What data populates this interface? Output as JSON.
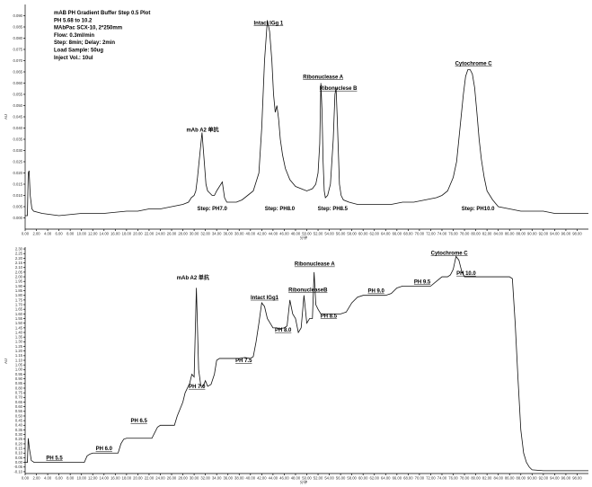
{
  "chart_data": [
    {
      "type": "line",
      "title": "mAB PH Gradient Buffer Step 0.5 Plot",
      "info_lines": [
        "mAB PH Gradient Buffer Step 0.5 Plot",
        "PH 5.68 to 10.2",
        "MAbPac SCX-10, 2*250mm",
        "Flow: 0.3ml/min",
        "Step: 8min; Delay: 2min",
        "Load Sample: 50ug",
        "Inject Vol.: 10ul"
      ],
      "xlabel": "分钟",
      "ylabel": "AU",
      "xlim": [
        0,
        100
      ],
      "ylim": [
        -0.005,
        0.095
      ],
      "yticks": [
        "0.000",
        "0.005",
        "0.010",
        "0.015",
        "0.020",
        "0.025",
        "0.030",
        "0.035",
        "0.040",
        "0.045",
        "0.050",
        "0.055",
        "0.060",
        "0.065",
        "0.070",
        "0.075",
        "0.080",
        "0.085",
        "0.090"
      ],
      "yticks_values": [
        0,
        0.005,
        0.01,
        0.015,
        0.02,
        0.025,
        0.03,
        0.035,
        0.04,
        0.045,
        0.05,
        0.055,
        0.06,
        0.065,
        0.07,
        0.075,
        0.08,
        0.085,
        0.09
      ],
      "xticks": [
        "0.00",
        "2.00",
        "4.00",
        "6.00",
        "8.00",
        "10.00",
        "12.00",
        "14.00",
        "16.00",
        "18.00",
        "20.00",
        "22.00",
        "24.00",
        "26.00",
        "28.00",
        "30.00",
        "32.00",
        "34.00",
        "36.00",
        "38.00",
        "40.00",
        "42.00",
        "44.00",
        "46.00",
        "48.00",
        "50.00",
        "52.00",
        "54.00",
        "56.00",
        "58.00",
        "60.00",
        "62.00",
        "64.00",
        "66.00",
        "68.00",
        "70.00",
        "72.00",
        "74.00",
        "76.00",
        "78.00",
        "80.00",
        "82.00",
        "84.00",
        "86.00",
        "88.00",
        "90.00",
        "92.00",
        "94.00",
        "96.00",
        "98.00"
      ],
      "series": [
        {
          "x": [
            0,
            0.4,
            0.55,
            0.7,
            0.9,
            1.2,
            1.5,
            3,
            6,
            10,
            14,
            18,
            20,
            22,
            24,
            26,
            28,
            29,
            29.5,
            30,
            30.3,
            30.6,
            31,
            31.4,
            31.8,
            32.1,
            32.4,
            32.8,
            33.2,
            33.6,
            34,
            35,
            35.4,
            35.8,
            36.2,
            36.8,
            37.5,
            38.5,
            39.5,
            40.5,
            41.5,
            42,
            42.5,
            43,
            43.4,
            43.8,
            44.1,
            44.4,
            44.7,
            45,
            45.3,
            45.7,
            46.2,
            47,
            48,
            49,
            50,
            51,
            51.6,
            52,
            52.3,
            52.5,
            52.7,
            52.9,
            53.1,
            53.3,
            53.7,
            54.2,
            54.7,
            55,
            55.2,
            55.4,
            55.6,
            55.8,
            56.1,
            56.5,
            57.5,
            59,
            61,
            63,
            65,
            67,
            69,
            71,
            73,
            74,
            75,
            76,
            76.6,
            77,
            77.4,
            77.8,
            78.2,
            78.6,
            79,
            79.4,
            79.8,
            80.2,
            80.6,
            81,
            81.5,
            82,
            83,
            84,
            86,
            88,
            90,
            92,
            94,
            96,
            98,
            100
          ],
          "y": [
            0.001,
            0.001,
            0.02,
            0.021,
            0.01,
            0.004,
            0.003,
            0.002,
            0.001,
            0.002,
            0.002,
            0.003,
            0.003,
            0.004,
            0.004,
            0.005,
            0.006,
            0.007,
            0.009,
            0.01,
            0.012,
            0.018,
            0.028,
            0.038,
            0.025,
            0.015,
            0.012,
            0.011,
            0.01,
            0.01,
            0.012,
            0.016,
            0.009,
            0.007,
            0.007,
            0.007,
            0.007,
            0.008,
            0.01,
            0.012,
            0.02,
            0.04,
            0.07,
            0.088,
            0.083,
            0.07,
            0.055,
            0.047,
            0.05,
            0.044,
            0.035,
            0.028,
            0.022,
            0.017,
            0.014,
            0.013,
            0.012,
            0.013,
            0.015,
            0.02,
            0.033,
            0.06,
            0.048,
            0.025,
            0.012,
            0.009,
            0.01,
            0.015,
            0.035,
            0.055,
            0.058,
            0.045,
            0.03,
            0.015,
            0.01,
            0.008,
            0.007,
            0.006,
            0.006,
            0.006,
            0.006,
            0.007,
            0.007,
            0.008,
            0.009,
            0.01,
            0.012,
            0.018,
            0.025,
            0.035,
            0.045,
            0.055,
            0.063,
            0.066,
            0.066,
            0.064,
            0.058,
            0.047,
            0.035,
            0.026,
            0.018,
            0.012,
            0.008,
            0.005,
            0.004,
            0.003,
            0.003,
            0.003,
            0.002,
            0.002,
            0.002,
            0.002
          ]
        }
      ],
      "annotations": [
        {
          "text": "mAb A2 单抗",
          "x": 31.5,
          "y": 0.0385
        },
        {
          "text": "Intact IGg 1",
          "x": 43.2,
          "y": 0.086
        },
        {
          "text": "Ribonuclease A",
          "x": 52.9,
          "y": 0.062
        },
        {
          "text": "Ribonuclese B",
          "x": 55.6,
          "y": 0.057
        },
        {
          "text": "Cytochrome C",
          "x": 79.6,
          "y": 0.068
        },
        {
          "text": "Step: PH7.0",
          "x": 33.2,
          "y": 0.0035
        },
        {
          "text": "Step: PH8.0",
          "x": 45.2,
          "y": 0.0035
        },
        {
          "text": "Step: PH8.5",
          "x": 54.6,
          "y": 0.0035
        },
        {
          "text": "Step: PH10.0",
          "x": 80.4,
          "y": 0.0035
        }
      ],
      "underlined": [
        "Intact IGg 1",
        "Ribonuclease A",
        "Ribonuclese B",
        "Cytochrome C"
      ]
    },
    {
      "type": "line",
      "xlabel": "分钟",
      "ylabel": "AU",
      "xlim": [
        0,
        100
      ],
      "ylim": [
        -0.12,
        2.32
      ],
      "yticks": [
        "-0.10",
        "-0.05",
        "0.00",
        "0.05",
        "0.10",
        "0.15",
        "0.20",
        "0.25",
        "0.30",
        "0.35",
        "0.40",
        "0.45",
        "0.50",
        "0.55",
        "0.60",
        "0.65",
        "0.70",
        "0.75",
        "0.80",
        "0.85",
        "0.90",
        "0.95",
        "1.00",
        "1.05",
        "1.10",
        "1.15",
        "1.20",
        "1.25",
        "1.30",
        "1.35",
        "1.40",
        "1.45",
        "1.50",
        "1.55",
        "1.60",
        "1.65",
        "1.70",
        "1.75",
        "1.80",
        "1.85",
        "1.90",
        "1.95",
        "2.00",
        "2.05",
        "2.10",
        "2.15",
        "2.20",
        "2.25",
        "2.30"
      ],
      "yticks_values": [
        -0.1,
        -0.05,
        0,
        0.05,
        0.1,
        0.15,
        0.2,
        0.25,
        0.3,
        0.35,
        0.4,
        0.45,
        0.5,
        0.55,
        0.6,
        0.65,
        0.7,
        0.75,
        0.8,
        0.85,
        0.9,
        0.95,
        1,
        1.05,
        1.1,
        1.15,
        1.2,
        1.25,
        1.3,
        1.35,
        1.4,
        1.45,
        1.5,
        1.55,
        1.6,
        1.65,
        1.7,
        1.75,
        1.8,
        1.85,
        1.9,
        1.95,
        2,
        2.05,
        2.1,
        2.15,
        2.2,
        2.25,
        2.3
      ],
      "xticks": [
        "0.00",
        "2.00",
        "4.00",
        "6.00",
        "8.00",
        "10.00",
        "12.00",
        "14.00",
        "16.00",
        "18.00",
        "20.00",
        "22.00",
        "24.00",
        "26.00",
        "28.00",
        "30.00",
        "32.00",
        "34.00",
        "36.00",
        "38.00",
        "40.00",
        "42.00",
        "44.00",
        "46.00",
        "48.00",
        "50.00",
        "52.00",
        "54.00",
        "56.00",
        "58.00",
        "60.00",
        "62.00",
        "64.00",
        "66.00",
        "68.00",
        "70.00",
        "72.00",
        "74.00",
        "76.00",
        "78.00",
        "80.00",
        "82.00",
        "84.00",
        "86.00",
        "88.00",
        "90.00",
        "92.00",
        "94.00",
        "96.00",
        "98.00"
      ],
      "series": [
        {
          "x": [
            0,
            0.4,
            0.55,
            0.75,
            1.1,
            1.6,
            2.5,
            5,
            8,
            10.5,
            11,
            11.5,
            12,
            14,
            16.5,
            17,
            17.5,
            18,
            20,
            22.5,
            23,
            23.5,
            24,
            26.5,
            27,
            28,
            28.4,
            28.8,
            29.2,
            29.6,
            30,
            30.4,
            30.8,
            31.2,
            31.6,
            32,
            32.4,
            33,
            33.6,
            34,
            34.5,
            36,
            38,
            39,
            40,
            40.5,
            41,
            41.5,
            42,
            42.5,
            43,
            43.5,
            44,
            44.5,
            45,
            46,
            46.5,
            47,
            47.5,
            48,
            48.5,
            49,
            49.5,
            50,
            50.5,
            51,
            51.3,
            51.6,
            52,
            52.5,
            53,
            53.5,
            54,
            55,
            56,
            57,
            58,
            59,
            60,
            61,
            62,
            63,
            64,
            65,
            66,
            67,
            68,
            69,
            70,
            71,
            72,
            73,
            74,
            75,
            75.5,
            76,
            76.5,
            77,
            77.5,
            78,
            79,
            80,
            81,
            82,
            83,
            84,
            85,
            86,
            86.5,
            87,
            87.5,
            88,
            88.5,
            89,
            89.5,
            90,
            92,
            94,
            96,
            98,
            100
          ],
          "y": [
            0.0,
            0.0,
            0.26,
            0.15,
            0.02,
            0.0,
            0.0,
            0.0,
            0.0,
            0.0,
            0.07,
            0.09,
            0.1,
            0.1,
            0.1,
            0.2,
            0.25,
            0.26,
            0.26,
            0.26,
            0.32,
            0.38,
            0.4,
            0.4,
            0.5,
            0.65,
            0.75,
            0.8,
            0.85,
            0.95,
            0.92,
            1.88,
            1.0,
            0.82,
            0.82,
            0.88,
            0.82,
            0.84,
            0.95,
            1.1,
            1.12,
            1.12,
            1.12,
            1.13,
            1.12,
            1.14,
            1.3,
            1.5,
            1.72,
            1.68,
            1.55,
            1.5,
            1.45,
            1.45,
            1.44,
            1.45,
            1.47,
            1.75,
            1.6,
            1.55,
            1.4,
            1.45,
            1.8,
            1.5,
            1.55,
            1.55,
            2.05,
            1.7,
            1.65,
            1.6,
            1.6,
            1.6,
            1.6,
            1.6,
            1.6,
            1.62,
            1.72,
            1.78,
            1.8,
            1.8,
            1.8,
            1.8,
            1.8,
            1.82,
            1.88,
            1.9,
            1.9,
            1.9,
            1.9,
            1.9,
            1.9,
            1.95,
            2.0,
            2.0,
            2.02,
            2.08,
            2.22,
            2.18,
            2.06,
            2.0,
            2.0,
            2.0,
            2.0,
            2.0,
            2.0,
            2.0,
            2.0,
            2.0,
            1.98,
            1.5,
            0.9,
            0.35,
            0.1,
            0.0,
            -0.05,
            -0.08,
            -0.09,
            -0.09,
            -0.09,
            -0.09,
            -0.09
          ]
        }
      ],
      "annotations": [
        {
          "text": "mAb A2 单抗",
          "x": 29.8,
          "y": 1.97
        },
        {
          "text": "Intact IGg1",
          "x": 42.5,
          "y": 1.76
        },
        {
          "text": "RibonucleaseB",
          "x": 50.2,
          "y": 1.84
        },
        {
          "text": "Ribonuclease A",
          "x": 51.4,
          "y": 2.12
        },
        {
          "text": "Cytochrome C",
          "x": 75.3,
          "y": 2.24
        },
        {
          "text": "PH 5.5",
          "x": 5.2,
          "y": 0.03
        },
        {
          "text": "PH 6.0",
          "x": 14.0,
          "y": 0.13
        },
        {
          "text": "PH 6.5",
          "x": 20.2,
          "y": 0.43
        },
        {
          "text": "PH 7.0",
          "x": 30.5,
          "y": 0.8
        },
        {
          "text": "PH 7.5",
          "x": 38.8,
          "y": 1.08
        },
        {
          "text": "PH 8.0",
          "x": 45.8,
          "y": 1.41
        },
        {
          "text": "PH 8.5",
          "x": 53.9,
          "y": 1.56
        },
        {
          "text": "PH 9.0",
          "x": 62.3,
          "y": 1.83
        },
        {
          "text": "PH 9.5",
          "x": 70.5,
          "y": 1.93
        },
        {
          "text": "PH 10.0",
          "x": 78.3,
          "y": 2.02
        }
      ],
      "underlined": [
        "Intact IGg1",
        "RibonucleaseB",
        "Ribonuclease A",
        "Cytochrome C",
        "PH 5.5",
        "PH 6.0",
        "PH 6.5",
        "PH 7.0",
        "PH 7.5",
        "PH 8.0",
        "PH 8.5",
        "PH 9.0",
        "PH 9.5",
        "PH 10.0"
      ]
    }
  ]
}
